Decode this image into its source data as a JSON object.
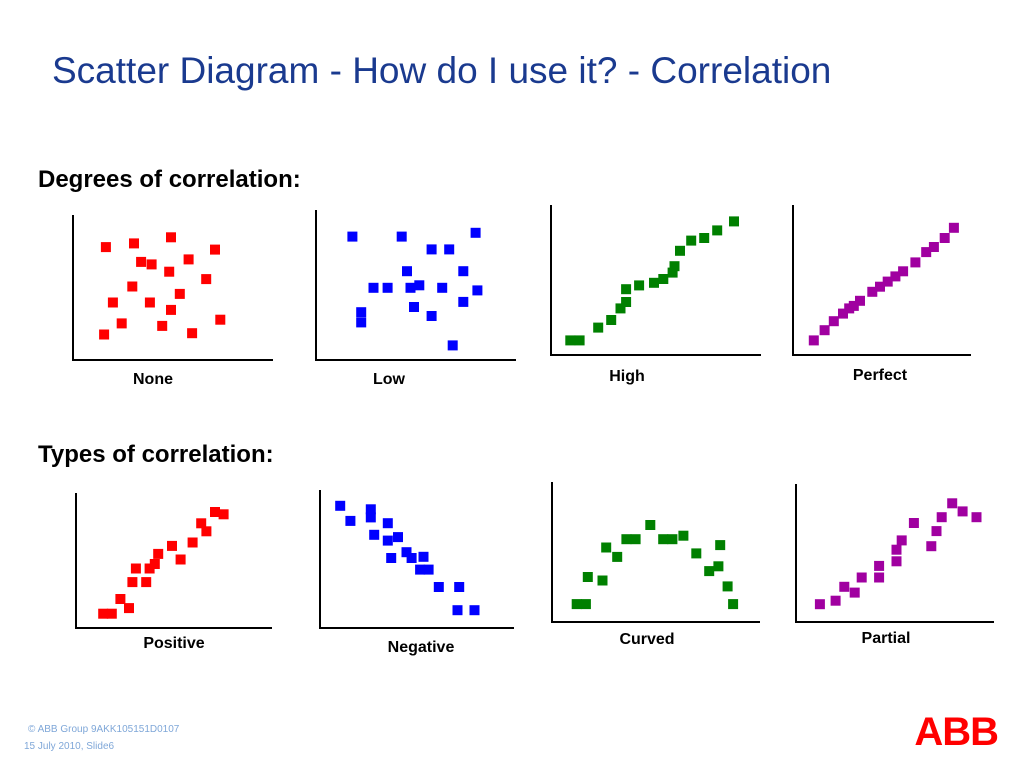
{
  "slide": {
    "title": "Scatter Diagram - How do I use it? - Correlation",
    "section_degrees": "Degrees of correlation:",
    "section_types": "Types of correlation:",
    "footer_line1": "© ABB Group   9AKK105151D0107",
    "footer_line2": "15 July 2010,  Slide6",
    "logo_text": "ABB"
  },
  "colors": {
    "title": "#1a3a8f",
    "red": "#ff0000",
    "blue": "#0000ff",
    "green": "#008000",
    "purple": "#a000a0",
    "logo": "#ff0000",
    "footer": "#7fa7d8"
  },
  "chart_data": [
    {
      "type": "scatter",
      "title": "None",
      "color": "#ff0000",
      "x": [
        0.13,
        0.29,
        0.33,
        0.5,
        0.6,
        0.75,
        0.39,
        0.28,
        0.49,
        0.55,
        0.7,
        0.17,
        0.38,
        0.5,
        0.78,
        0.22,
        0.45,
        0.62,
        0.12
      ],
      "y": [
        0.82,
        0.85,
        0.7,
        0.9,
        0.72,
        0.8,
        0.68,
        0.5,
        0.62,
        0.44,
        0.56,
        0.37,
        0.37,
        0.31,
        0.23,
        0.2,
        0.18,
        0.12,
        0.11
      ]
    },
    {
      "type": "scatter",
      "title": "Low",
      "color": "#0000ff",
      "x": [
        0.15,
        0.43,
        0.7,
        0.85,
        0.46,
        0.6,
        0.78,
        0.53,
        0.35,
        0.27,
        0.48,
        0.66,
        0.86,
        0.5,
        0.78,
        0.2,
        0.2,
        0.6,
        0.72
      ],
      "y": [
        0.87,
        0.87,
        0.77,
        0.9,
        0.6,
        0.77,
        0.6,
        0.49,
        0.47,
        0.47,
        0.47,
        0.47,
        0.45,
        0.32,
        0.36,
        0.2,
        0.28,
        0.25,
        0.02
      ]
    },
    {
      "type": "scatter",
      "title": "High",
      "color": "#008000",
      "x": [
        0.05,
        0.1,
        0.2,
        0.27,
        0.32,
        0.35,
        0.35,
        0.42,
        0.5,
        0.55,
        0.6,
        0.61,
        0.64,
        0.7,
        0.77,
        0.84,
        0.93
      ],
      "y": [
        0.02,
        0.02,
        0.12,
        0.18,
        0.27,
        0.32,
        0.42,
        0.45,
        0.47,
        0.5,
        0.55,
        0.6,
        0.72,
        0.8,
        0.82,
        0.88,
        0.95
      ]
    },
    {
      "type": "scatter",
      "title": "Perfect",
      "color": "#a000a0",
      "x": [
        0.07,
        0.14,
        0.2,
        0.26,
        0.3,
        0.33,
        0.37,
        0.45,
        0.5,
        0.55,
        0.6,
        0.65,
        0.73,
        0.8,
        0.85,
        0.92,
        0.98
      ],
      "y": [
        0.02,
        0.1,
        0.17,
        0.23,
        0.27,
        0.29,
        0.33,
        0.4,
        0.44,
        0.48,
        0.52,
        0.56,
        0.63,
        0.71,
        0.75,
        0.82,
        0.9
      ]
    },
    {
      "type": "scatter",
      "title": "Positive",
      "color": "#ff0000",
      "x": [
        0.1,
        0.15,
        0.2,
        0.25,
        0.27,
        0.29,
        0.35,
        0.37,
        0.4,
        0.42,
        0.5,
        0.55,
        0.62,
        0.67,
        0.7,
        0.75,
        0.8
      ],
      "y": [
        0.02,
        0.02,
        0.15,
        0.07,
        0.3,
        0.42,
        0.3,
        0.42,
        0.46,
        0.55,
        0.62,
        0.5,
        0.65,
        0.82,
        0.75,
        0.92,
        0.9
      ]
    },
    {
      "type": "scatter",
      "title": "Negative",
      "color": "#0000ff",
      "x": [
        0.06,
        0.12,
        0.24,
        0.24,
        0.26,
        0.34,
        0.34,
        0.36,
        0.4,
        0.45,
        0.48,
        0.53,
        0.55,
        0.58,
        0.64,
        0.75,
        0.76,
        0.85
      ],
      "y": [
        0.95,
        0.82,
        0.92,
        0.85,
        0.7,
        0.8,
        0.65,
        0.5,
        0.68,
        0.55,
        0.5,
        0.4,
        0.51,
        0.4,
        0.25,
        0.05,
        0.25,
        0.05
      ]
    },
    {
      "type": "scatter",
      "title": "Curved",
      "color": "#008000",
      "x": [
        0.08,
        0.13,
        0.14,
        0.22,
        0.24,
        0.3,
        0.35,
        0.4,
        0.48,
        0.55,
        0.6,
        0.66,
        0.73,
        0.8,
        0.85,
        0.86,
        0.9,
        0.93
      ],
      "y": [
        0.05,
        0.05,
        0.28,
        0.25,
        0.53,
        0.45,
        0.6,
        0.6,
        0.72,
        0.6,
        0.6,
        0.63,
        0.48,
        0.33,
        0.37,
        0.55,
        0.2,
        0.05
      ]
    },
    {
      "type": "scatter",
      "title": "Partial",
      "color": "#a000a0",
      "x": [
        0.08,
        0.17,
        0.22,
        0.28,
        0.32,
        0.42,
        0.42,
        0.52,
        0.52,
        0.55,
        0.62,
        0.72,
        0.75,
        0.78,
        0.84,
        0.9,
        0.98
      ],
      "y": [
        0.05,
        0.08,
        0.2,
        0.15,
        0.28,
        0.28,
        0.38,
        0.42,
        0.52,
        0.6,
        0.75,
        0.55,
        0.68,
        0.8,
        0.92,
        0.85,
        0.8
      ]
    }
  ]
}
